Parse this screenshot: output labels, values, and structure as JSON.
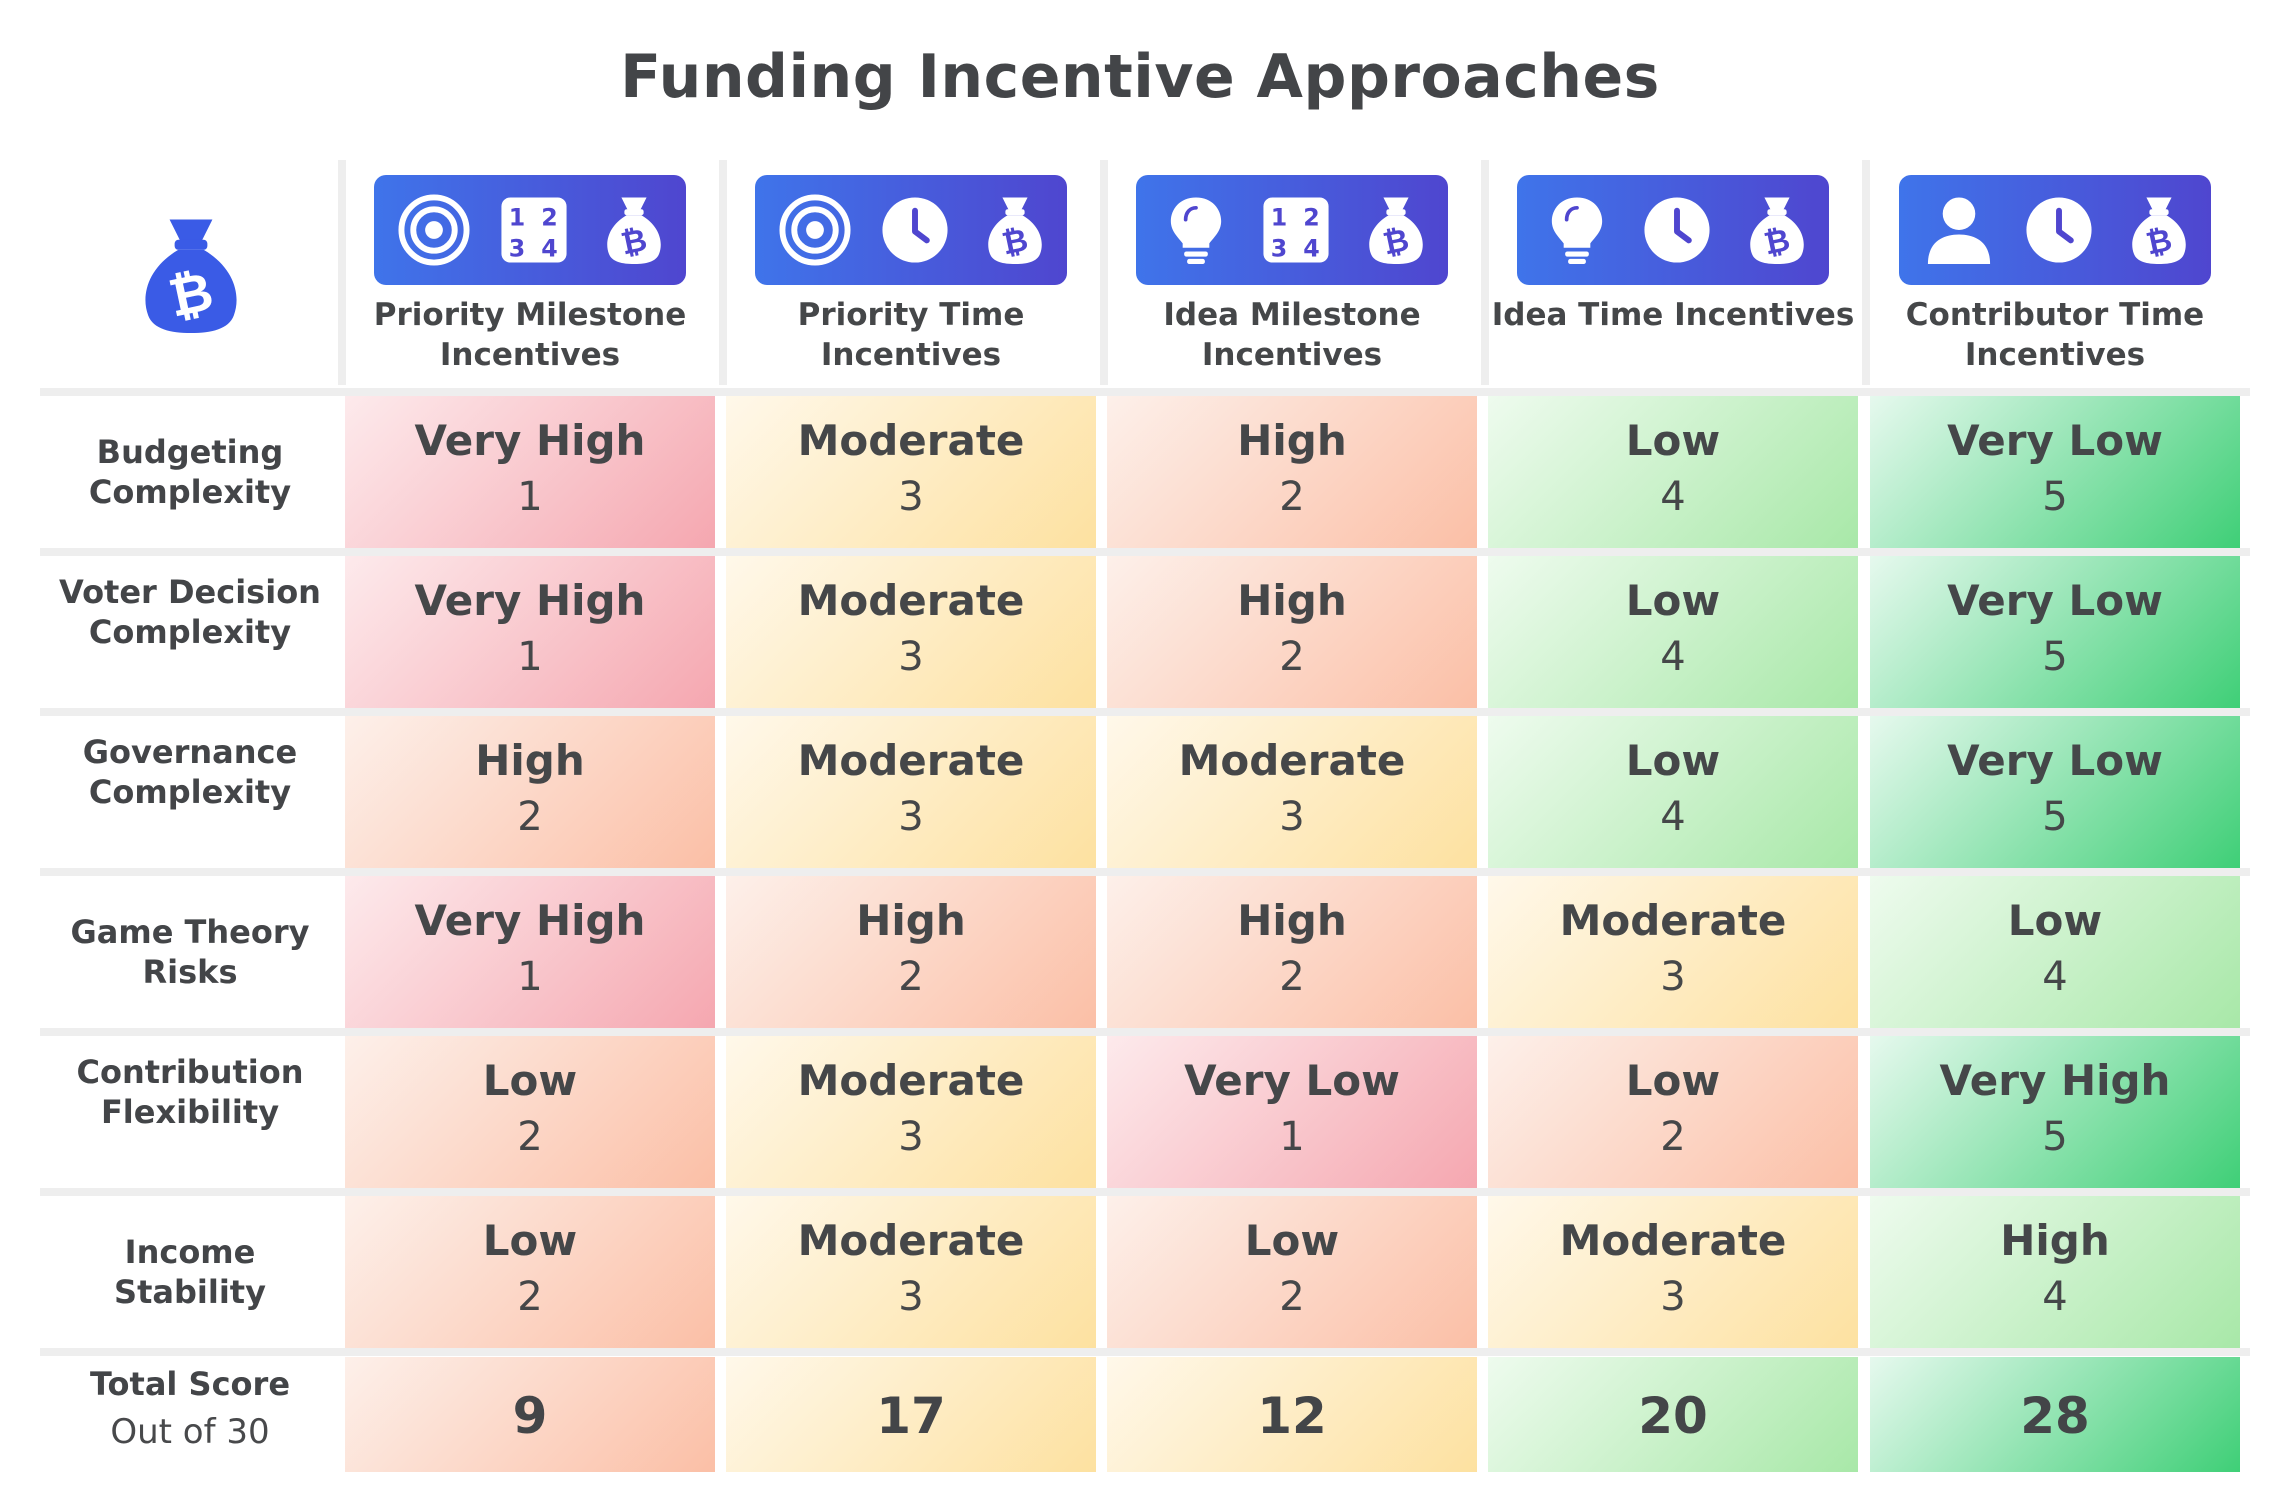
{
  "title": "Funding Incentive Approaches",
  "icon_gradient": [
    "#3f74ea",
    "#4f46cf"
  ],
  "score_colors": {
    "1": "#f5a7b0",
    "2": "#fbbfa6",
    "3": "#fde1a0",
    "4": "#a8e8a8",
    "5": "#3fcf77"
  },
  "columns": [
    {
      "label": "Priority Milestone Incentives",
      "icons": [
        "target-icon",
        "milestone-grid-icon",
        "bitcoin-bag-icon"
      ]
    },
    {
      "label": "Priority Time Incentives",
      "icons": [
        "target-icon",
        "clock-icon",
        "bitcoin-bag-icon"
      ]
    },
    {
      "label": "Idea Milestone Incentives",
      "icons": [
        "lightbulb-icon",
        "milestone-grid-icon",
        "bitcoin-bag-icon"
      ]
    },
    {
      "label": "Idea Time Incentives",
      "icons": [
        "lightbulb-icon",
        "clock-icon",
        "bitcoin-bag-icon"
      ]
    },
    {
      "label": "Contributor Time Incentives",
      "icons": [
        "person-icon",
        "clock-icon",
        "bitcoin-bag-icon"
      ]
    }
  ],
  "milestone_digits": [
    "1",
    "2",
    "3",
    "4"
  ],
  "total_label": "Total Score",
  "total_sub": "Out of 30",
  "chart_data": {
    "type": "table",
    "title": "Funding Incentive Approaches",
    "columns": [
      "Priority Milestone Incentives",
      "Priority Time Incentives",
      "Idea Milestone Incentives",
      "Idea Time Incentives",
      "Contributor Time Incentives"
    ],
    "rows": [
      {
        "label": "Budgeting Complexity",
        "levels": [
          "Very High",
          "Moderate",
          "High",
          "Low",
          "Very Low"
        ],
        "scores": [
          1,
          3,
          2,
          4,
          5
        ]
      },
      {
        "label": "Voter Decision Complexity",
        "levels": [
          "Very High",
          "Moderate",
          "High",
          "Low",
          "Very Low"
        ],
        "scores": [
          1,
          3,
          2,
          4,
          5
        ]
      },
      {
        "label": "Governance Complexity",
        "levels": [
          "High",
          "Moderate",
          "Moderate",
          "Low",
          "Very Low"
        ],
        "scores": [
          2,
          3,
          3,
          4,
          5
        ]
      },
      {
        "label": "Game Theory Risks",
        "levels": [
          "Very High",
          "High",
          "High",
          "Moderate",
          "Low"
        ],
        "scores": [
          1,
          2,
          2,
          3,
          4
        ]
      },
      {
        "label": "Contribution Flexibility",
        "levels": [
          "Low",
          "Moderate",
          "Very Low",
          "Low",
          "Very High"
        ],
        "scores": [
          2,
          3,
          1,
          2,
          5
        ]
      },
      {
        "label": "Income Stability",
        "levels": [
          "Low",
          "Moderate",
          "Low",
          "Moderate",
          "High"
        ],
        "scores": [
          2,
          3,
          2,
          3,
          4
        ]
      }
    ],
    "totals": [
      9,
      17,
      12,
      20,
      28
    ],
    "max_total": 30
  }
}
